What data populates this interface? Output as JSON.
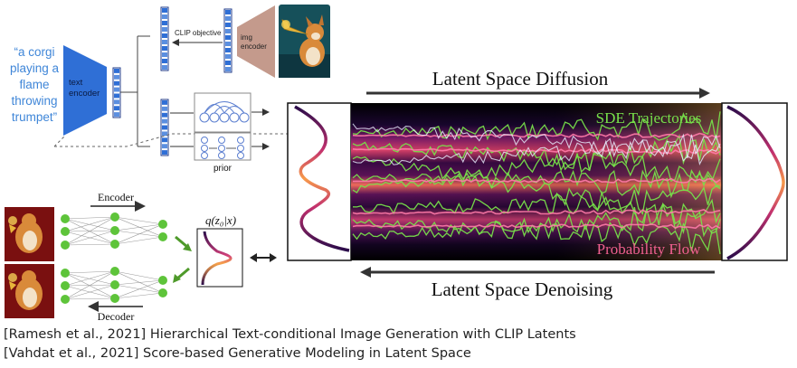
{
  "clip": {
    "prompt_lines": [
      "“a corgi",
      "playing a",
      "flame",
      "throwing",
      "trumpet”"
    ],
    "text_encoder_lines": [
      "text",
      "encoder"
    ],
    "img_encoder_lines": [
      "img",
      "encoder"
    ],
    "clip_objective": "CLIP objective",
    "prior": "prior"
  },
  "vae": {
    "encoder": "Encoder",
    "decoder": "Decoder",
    "posterior_label": "q(z₀|x)"
  },
  "diffusion": {
    "top_label": "Latent Space Diffusion",
    "bottom_label": "Latent Space Denoising",
    "sde_label": "SDE Trajectories",
    "flow_label": "Probability Flow"
  },
  "citations": [
    "[Ramesh et al., 2021] Hierarchical Text-conditional Image Generation with CLIP Latents",
    "[Vahdat et al., 2021] Score-based Generative Modeling in Latent Space"
  ],
  "colors": {
    "encoder_blue": "#2f6fd6",
    "prompt_blue": "#3f86d8",
    "img_encoder_brown": "#c49a8c",
    "node_green": "#5ec43a",
    "arrow_green": "#4e9a2a",
    "sde_green": "#77e04a",
    "flow_pink": "#f06090"
  }
}
